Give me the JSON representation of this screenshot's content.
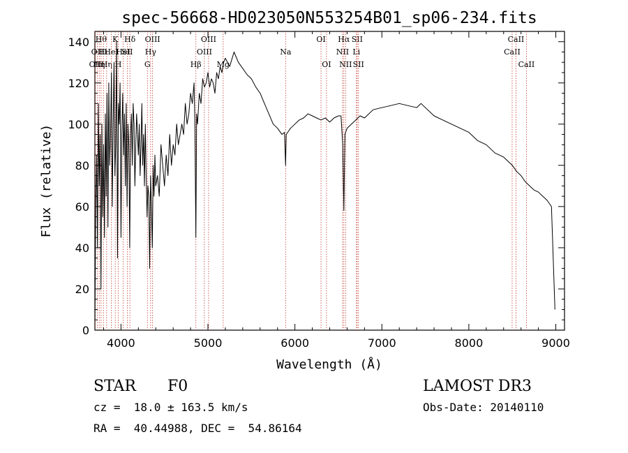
{
  "chart_data": {
    "type": "line",
    "title": "spec-56668-HD023050N553254B01_sp06-234.fits",
    "xlabel": "Wavelength (Å)",
    "ylabel": "Flux (relative)",
    "xlim": [
      3700,
      9100
    ],
    "ylim": [
      0,
      145
    ],
    "xticks": [
      "4000",
      "5000",
      "6000",
      "7000",
      "8000",
      "9000"
    ],
    "yticks": [
      "0",
      "20",
      "40",
      "60",
      "80",
      "100",
      "120",
      "140"
    ],
    "series": [
      {
        "x": [
          3700,
          3710,
          3720,
          3730,
          3740,
          3750,
          3760,
          3770,
          3780,
          3790,
          3800,
          3810,
          3820,
          3830,
          3840,
          3850,
          3860,
          3870,
          3880,
          3890,
          3900,
          3910,
          3920,
          3930,
          3940,
          3950,
          3960,
          3970,
          3980,
          3990,
          4000,
          4010,
          4020,
          4030,
          4040,
          4050,
          4060,
          4070,
          4080,
          4090,
          4100,
          4110,
          4120,
          4130,
          4140,
          4150,
          4160,
          4170,
          4180,
          4190,
          4200,
          4210,
          4220,
          4230,
          4240,
          4250,
          4260,
          4270,
          4280,
          4290,
          4300,
          4310,
          4320,
          4330,
          4340,
          4350,
          4360,
          4370,
          4380,
          4390,
          4400,
          4420,
          4440,
          4460,
          4480,
          4500,
          4520,
          4540,
          4560,
          4580,
          4600,
          4620,
          4640,
          4660,
          4680,
          4700,
          4720,
          4740,
          4760,
          4780,
          4800,
          4820,
          4840,
          4850,
          4861,
          4870,
          4880,
          4900,
          4920,
          4940,
          4960,
          4980,
          5000,
          5020,
          5040,
          5060,
          5080,
          5100,
          5120,
          5140,
          5160,
          5180,
          5200,
          5250,
          5300,
          5350,
          5400,
          5450,
          5500,
          5550,
          5600,
          5650,
          5700,
          5750,
          5800,
          5850,
          5880,
          5893,
          5900,
          5950,
          6000,
          6050,
          6100,
          6150,
          6200,
          6250,
          6300,
          6350,
          6400,
          6450,
          6500,
          6530,
          6550,
          6563,
          6575,
          6600,
          6650,
          6700,
          6750,
          6800,
          6900,
          7000,
          7100,
          7200,
          7300,
          7400,
          7450,
          7500,
          7600,
          7700,
          7800,
          7900,
          8000,
          8100,
          8200,
          8300,
          8400,
          8500,
          8550,
          8600,
          8650,
          8700,
          8750,
          8800,
          8850,
          8900,
          8950,
          8990
        ],
        "values": [
          5,
          60,
          85,
          40,
          110,
          70,
          95,
          20,
          100,
          55,
          90,
          45,
          105,
          65,
          115,
          50,
          120,
          80,
          95,
          125,
          60,
          100,
          130,
          75,
          90,
          140,
          35,
          110,
          100,
          120,
          45,
          95,
          115,
          85,
          105,
          70,
          110,
          60,
          100,
          90,
          40,
          95,
          105,
          80,
          110,
          100,
          70,
          90,
          105,
          95,
          85,
          100,
          75,
          90,
          110,
          80,
          95,
          70,
          100,
          75,
          55,
          70,
          65,
          30,
          75,
          60,
          40,
          80,
          65,
          85,
          70,
          75,
          65,
          90,
          80,
          70,
          85,
          75,
          95,
          80,
          90,
          85,
          100,
          90,
          95,
          100,
          95,
          110,
          100,
          105,
          115,
          110,
          120,
          100,
          45,
          105,
          100,
          115,
          110,
          122,
          118,
          120,
          125,
          118,
          122,
          120,
          115,
          125,
          122,
          128,
          125,
          130,
          132,
          128,
          135,
          130,
          127,
          124,
          122,
          118,
          115,
          110,
          105,
          100,
          98,
          95,
          96,
          80,
          95,
          98,
          100,
          102,
          103,
          105,
          104,
          103,
          102,
          103,
          101,
          103,
          104,
          104,
          90,
          58,
          95,
          98,
          100,
          102,
          104,
          103,
          107,
          108,
          109,
          110,
          109,
          108,
          110,
          108,
          104,
          102,
          100,
          98,
          96,
          92,
          90,
          86,
          84,
          80,
          77,
          75,
          72,
          70,
          68,
          67,
          65,
          63,
          60,
          10
        ]
      }
    ],
    "line_annotations": [
      {
        "wavelength": 3704,
        "label": "OII",
        "row": 2
      },
      {
        "wavelength": 3728,
        "label": "OII",
        "row": 1
      },
      {
        "wavelength": 3750,
        "label": "Hη",
        "row": 2
      },
      {
        "wavelength": 3771,
        "label": "Hθ",
        "row": 0
      },
      {
        "wavelength": 3798,
        "label": "Hι",
        "row": 1
      },
      {
        "wavelength": 3835,
        "label": "Hη",
        "row": 2
      },
      {
        "wavelength": 3889,
        "label": "HeI",
        "row": 1
      },
      {
        "wavelength": 3934,
        "label": "K",
        "row": 0
      },
      {
        "wavelength": 3969,
        "label": "H",
        "row": 2
      },
      {
        "wavelength": 4026,
        "label": "HeI",
        "row": 1
      },
      {
        "wavelength": 4072,
        "label": "SII",
        "row": 1
      },
      {
        "wavelength": 4102,
        "label": "Hδ",
        "row": 0
      },
      {
        "wavelength": 4304,
        "label": "G",
        "row": 2
      },
      {
        "wavelength": 4341,
        "label": "Hγ",
        "row": 1
      },
      {
        "wavelength": 4363,
        "label": "OIII",
        "row": 0
      },
      {
        "wavelength": 4861,
        "label": "Hβ",
        "row": 2
      },
      {
        "wavelength": 4959,
        "label": "OIII",
        "row": 1
      },
      {
        "wavelength": 5007,
        "label": "OIII",
        "row": 0
      },
      {
        "wavelength": 5175,
        "label": "Mg",
        "row": 2
      },
      {
        "wavelength": 5893,
        "label": "Na",
        "row": 1
      },
      {
        "wavelength": 6300,
        "label": "OI",
        "row": 0
      },
      {
        "wavelength": 6363,
        "label": "OI",
        "row": 2
      },
      {
        "wavelength": 6548,
        "label": "NII",
        "row": 1
      },
      {
        "wavelength": 6563,
        "label": "Hα",
        "row": 0
      },
      {
        "wavelength": 6583,
        "label": "NII",
        "row": 2
      },
      {
        "wavelength": 6707,
        "label": "Li",
        "row": 1
      },
      {
        "wavelength": 6716,
        "label": "SII",
        "row": 0
      },
      {
        "wavelength": 6731,
        "label": "SII",
        "row": 2
      },
      {
        "wavelength": 8498,
        "label": "CaII",
        "row": 1
      },
      {
        "wavelength": 8542,
        "label": "CaII",
        "row": 0
      },
      {
        "wavelength": 8662,
        "label": "CaII",
        "row": 2
      }
    ],
    "colors": {
      "spectrum": "#000000",
      "line_markers": "#c0392b",
      "axes": "#000000"
    }
  },
  "info": {
    "object_class": "STAR",
    "subclass": "F0",
    "survey": "LAMOST DR3",
    "redshift": "cz =  18.0 ± 163.5 km/s",
    "obs_date": "Obs-Date: 20140110",
    "coords": "RA =  40.44988, DEC =  54.86164"
  }
}
